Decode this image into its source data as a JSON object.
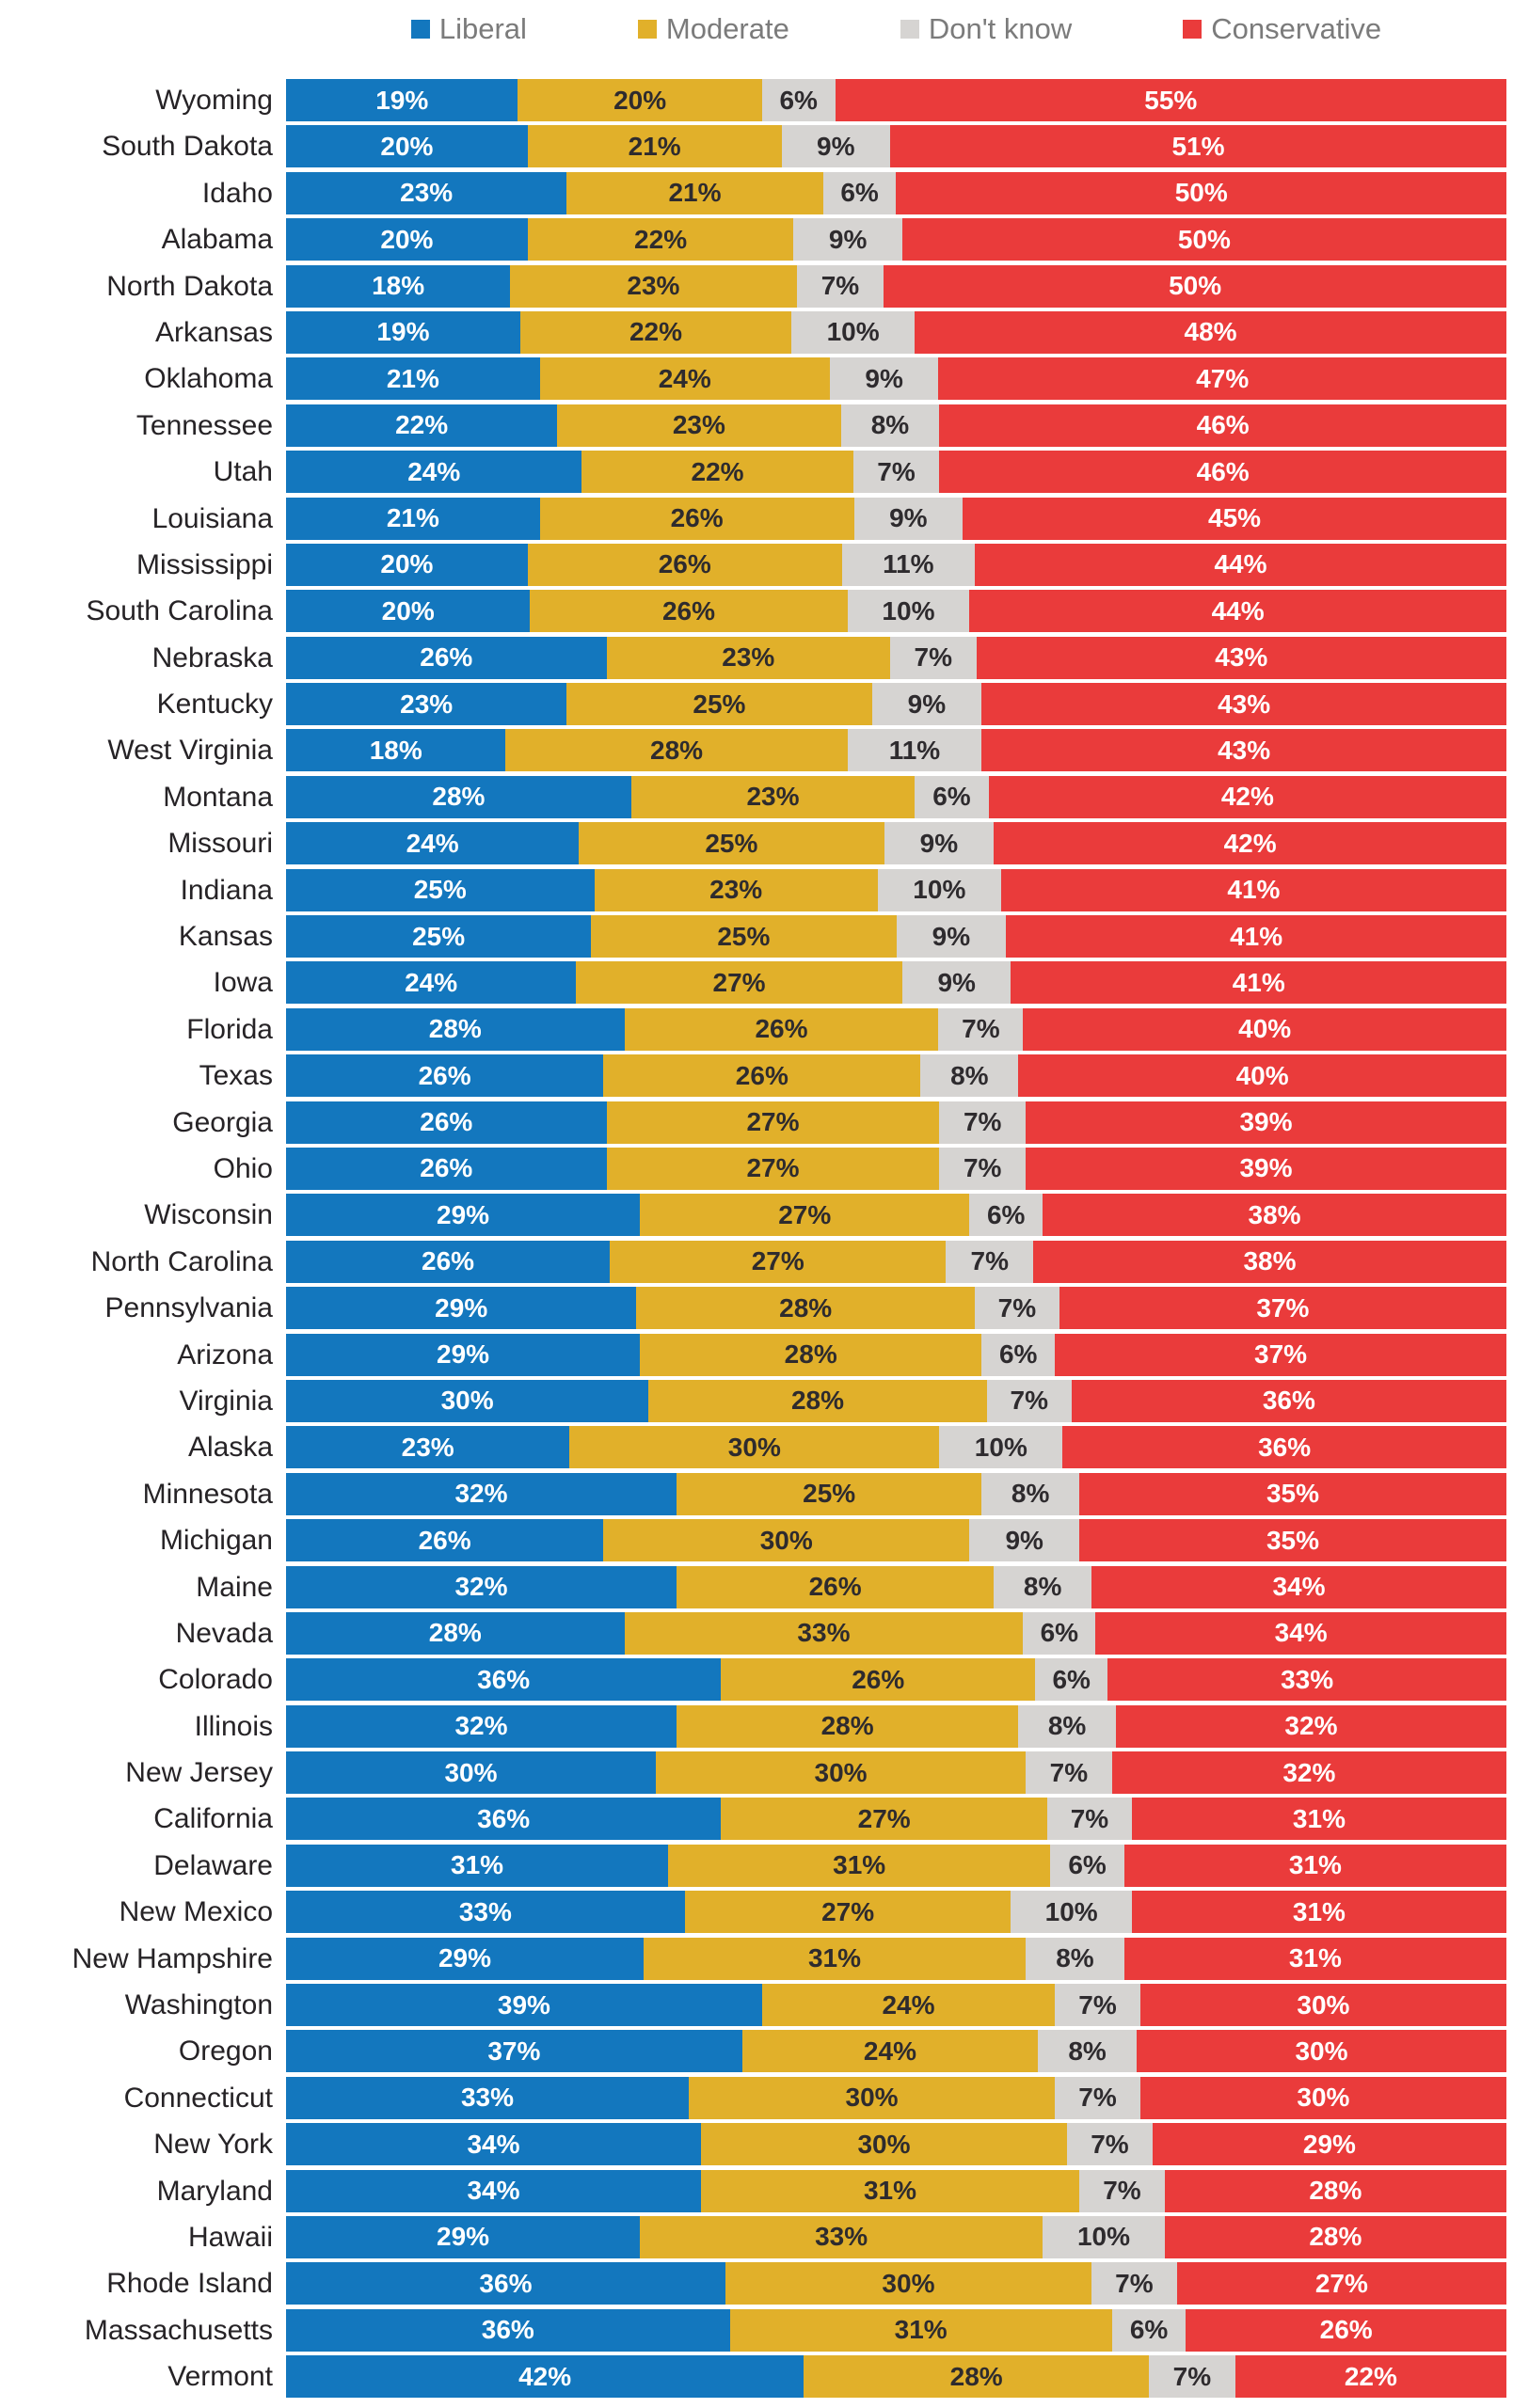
{
  "legend": [
    {
      "label": "Liberal",
      "color": "#1377be",
      "text_color": "#ffffff"
    },
    {
      "label": "Moderate",
      "color": "#e1b02a",
      "text_color": "#2e2b2e"
    },
    {
      "label": "Don't know",
      "color": "#d6d4d2",
      "text_color": "#2e2b2e"
    },
    {
      "label": "Conservative",
      "color": "#ea3b3b",
      "text_color": "#ffffff"
    }
  ],
  "chart_data": {
    "type": "bar",
    "orientation": "horizontal",
    "stacked": true,
    "unit": "%",
    "legend_position": "top",
    "grid": false,
    "categories": [
      "Wyoming",
      "South Dakota",
      "Idaho",
      "Alabama",
      "North Dakota",
      "Arkansas",
      "Oklahoma",
      "Tennessee",
      "Utah",
      "Louisiana",
      "Mississippi",
      "South Carolina",
      "Nebraska",
      "Kentucky",
      "West Virginia",
      "Montana",
      "Missouri",
      "Indiana",
      "Kansas",
      "Iowa",
      "Florida",
      "Texas",
      "Georgia",
      "Ohio",
      "Wisconsin",
      "North Carolina",
      "Pennsylvania",
      "Arizona",
      "Virginia",
      "Alaska",
      "Minnesota",
      "Michigan",
      "Maine",
      "Nevada",
      "Colorado",
      "Illinois",
      "New Jersey",
      "California",
      "Delaware",
      "New Mexico",
      "New Hampshire",
      "Washington",
      "Oregon",
      "Connecticut",
      "New York",
      "Maryland",
      "Hawaii",
      "Rhode Island",
      "Massachusetts",
      "Vermont"
    ],
    "series": [
      {
        "name": "Liberal",
        "color": "#1377be",
        "text_color": "#ffffff",
        "values": [
          19,
          20,
          23,
          20,
          18,
          19,
          21,
          22,
          24,
          21,
          20,
          20,
          26,
          23,
          18,
          28,
          24,
          25,
          25,
          24,
          28,
          26,
          26,
          26,
          29,
          26,
          29,
          29,
          30,
          23,
          32,
          26,
          32,
          28,
          36,
          32,
          30,
          36,
          31,
          33,
          29,
          39,
          37,
          33,
          34,
          34,
          29,
          36,
          36,
          42
        ]
      },
      {
        "name": "Moderate",
        "color": "#e1b02a",
        "text_color": "#2e2b2e",
        "values": [
          20,
          21,
          21,
          22,
          23,
          22,
          24,
          23,
          22,
          26,
          26,
          26,
          23,
          25,
          28,
          23,
          25,
          23,
          25,
          27,
          26,
          26,
          27,
          27,
          27,
          27,
          28,
          28,
          28,
          30,
          25,
          30,
          26,
          33,
          26,
          28,
          30,
          27,
          31,
          27,
          31,
          24,
          24,
          30,
          30,
          31,
          33,
          30,
          31,
          28
        ]
      },
      {
        "name": "Don't know",
        "color": "#d6d4d2",
        "text_color": "#2e2b2e",
        "values": [
          6,
          9,
          6,
          9,
          7,
          10,
          9,
          8,
          7,
          9,
          11,
          10,
          7,
          9,
          11,
          6,
          9,
          10,
          9,
          9,
          7,
          8,
          7,
          7,
          6,
          7,
          7,
          6,
          7,
          10,
          8,
          9,
          8,
          6,
          6,
          8,
          7,
          7,
          6,
          10,
          8,
          7,
          8,
          7,
          7,
          7,
          10,
          7,
          6,
          7
        ]
      },
      {
        "name": "Conservative",
        "color": "#ea3b3b",
        "text_color": "#ffffff",
        "values": [
          55,
          51,
          50,
          50,
          50,
          48,
          47,
          46,
          46,
          45,
          44,
          44,
          43,
          43,
          43,
          42,
          42,
          41,
          41,
          41,
          40,
          40,
          39,
          39,
          38,
          38,
          37,
          37,
          36,
          36,
          35,
          35,
          34,
          34,
          33,
          32,
          32,
          31,
          31,
          31,
          31,
          30,
          30,
          30,
          29,
          28,
          28,
          27,
          26,
          22
        ]
      }
    ]
  }
}
